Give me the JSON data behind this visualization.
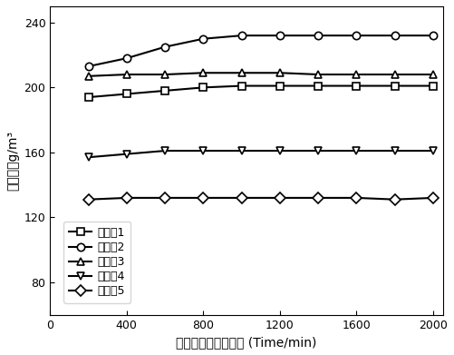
{
  "x": [
    200,
    400,
    600,
    800,
    1000,
    1200,
    1400,
    1600,
    1800,
    2000
  ],
  "series": [
    {
      "label": "实施兣1",
      "marker": "s",
      "y": [
        194,
        196,
        198,
        200,
        201,
        201,
        201,
        201,
        201,
        201
      ]
    },
    {
      "label": "实施兣2",
      "marker": "o",
      "y": [
        213,
        218,
        225,
        230,
        232,
        232,
        232,
        232,
        232,
        232
      ]
    },
    {
      "label": "实施兣3",
      "marker": "^",
      "y": [
        207,
        208,
        208,
        209,
        209,
        209,
        208,
        208,
        208,
        208
      ]
    },
    {
      "label": "实施兣4",
      "marker": "v",
      "y": [
        157,
        159,
        161,
        161,
        161,
        161,
        161,
        161,
        161,
        161
      ]
    },
    {
      "label": "实施兣5",
      "marker": "D",
      "y": [
        131,
        132,
        132,
        132,
        132,
        132,
        132,
        132,
        131,
        132
      ]
    }
  ],
  "xlabel": "臭氧发生器运行时间 (Time/min)",
  "ylabel": "臭氧浓度g/m³",
  "xlim": [
    0,
    2050
  ],
  "ylim": [
    60,
    250
  ],
  "yticks": [
    80,
    120,
    160,
    200,
    240
  ],
  "xticks": [
    0,
    400,
    800,
    1200,
    1600,
    2000
  ],
  "line_color": "black",
  "marker_facecolor": "white",
  "linewidth": 1.5,
  "markersize": 6
}
